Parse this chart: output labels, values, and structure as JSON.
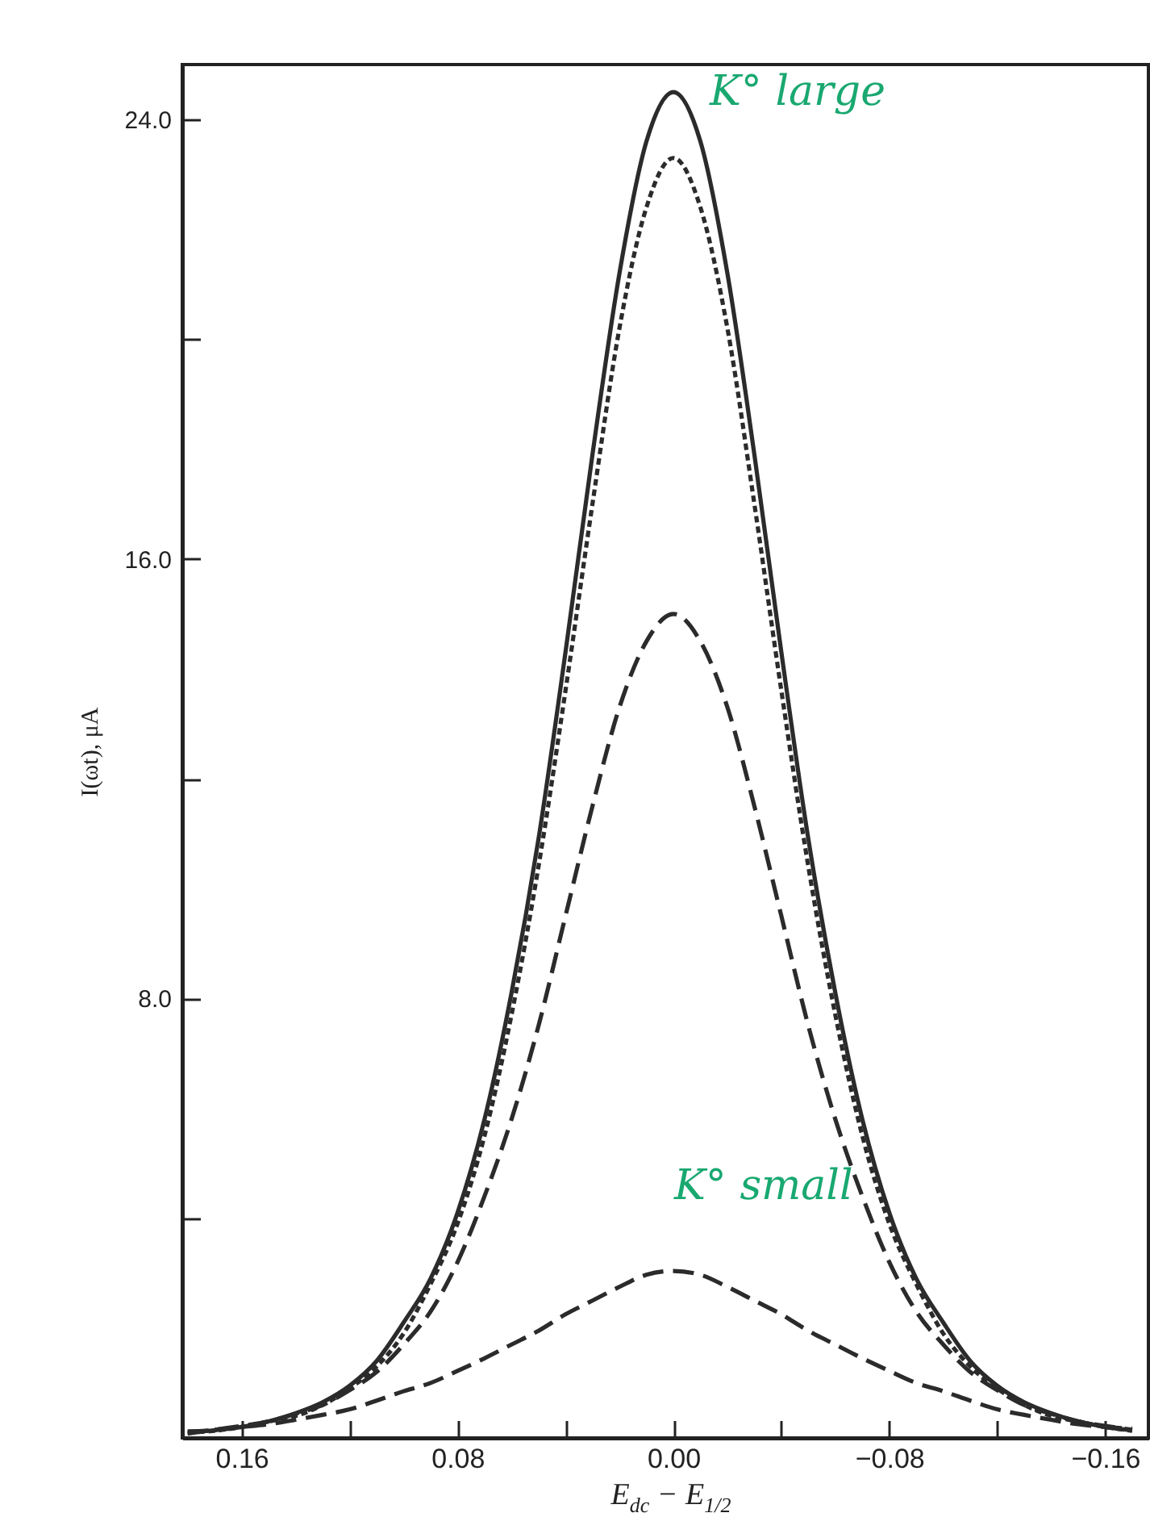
{
  "chart_data": {
    "type": "line",
    "xlabel": "E$_{dc}$ − E$_{1/2}$",
    "ylabel": "I(ωt), μA",
    "x": [
      0.18,
      0.17,
      0.16,
      0.15,
      0.14,
      0.13,
      0.12,
      0.11,
      0.1,
      0.09,
      0.08,
      0.07,
      0.06,
      0.05,
      0.04,
      0.03,
      0.02,
      0.01,
      0,
      -0.01,
      -0.02,
      -0.03,
      -0.04,
      -0.05,
      -0.06,
      -0.07,
      -0.08,
      -0.09,
      -0.1,
      -0.11,
      -0.12,
      -0.13,
      -0.14,
      -0.15,
      -0.16,
      -0.17
    ],
    "series": [
      {
        "color": "#2b2b2b",
        "line_style": "solid",
        "values": [
          0.12,
          0.14,
          0.2,
          0.3,
          0.45,
          0.65,
          0.95,
          1.4,
          2.1,
          2.9,
          4.1,
          5.8,
          8.1,
          10.9,
          14.3,
          17.9,
          21.2,
          23.6,
          24.5,
          23.6,
          21.2,
          17.9,
          14.3,
          10.9,
          8.1,
          5.8,
          4.1,
          2.9,
          2.1,
          1.4,
          0.95,
          0.65,
          0.45,
          0.3,
          0.2,
          0.14
        ]
      },
      {
        "color": "#2b2b2b",
        "line_style": "dotted",
        "values": [
          0.1,
          0.13,
          0.2,
          0.3,
          0.4,
          0.6,
          0.9,
          1.3,
          1.9,
          2.8,
          3.9,
          5.5,
          7.7,
          10.4,
          13.6,
          17.0,
          20.2,
          22.4,
          23.3,
          22.4,
          20.2,
          17.0,
          13.6,
          10.4,
          7.7,
          5.5,
          3.9,
          2.8,
          1.9,
          1.3,
          0.9,
          0.6,
          0.4,
          0.3,
          0.2,
          0.13
        ]
      },
      {
        "color": "#2b2b2b",
        "line_style": "dashed",
        "values": [
          0.08,
          0.15,
          0.22,
          0.3,
          0.44,
          0.6,
          0.87,
          1.2,
          1.7,
          2.3,
          3.2,
          4.4,
          5.8,
          7.5,
          9.5,
          11.5,
          13.3,
          14.5,
          15.0,
          14.5,
          13.3,
          11.5,
          9.5,
          7.5,
          5.8,
          4.4,
          3.2,
          2.3,
          1.7,
          1.2,
          0.87,
          0.6,
          0.44,
          0.3,
          0.22,
          0.15
        ]
      },
      {
        "color": "#2b2b2b",
        "line_style": "dashed",
        "x": [
          0.17,
          0.16,
          0.15,
          0.14,
          0.13,
          0.12,
          0.11,
          0.1,
          0.09,
          0.08,
          0.07,
          0.06,
          0.05,
          0.04,
          0.03,
          0.02,
          0.01,
          0,
          -0.01,
          -0.02,
          -0.03,
          -0.04,
          -0.05,
          -0.06,
          -0.07,
          -0.08,
          -0.09,
          -0.1,
          -0.11,
          -0.12,
          -0.13,
          -0.14,
          -0.15,
          -0.16,
          -0.17
        ],
        "values": [
          0.15,
          0.2,
          0.25,
          0.33,
          0.42,
          0.52,
          0.68,
          0.85,
          1.0,
          1.22,
          1.45,
          1.7,
          1.95,
          2.25,
          2.5,
          2.75,
          2.97,
          3.04,
          2.97,
          2.75,
          2.5,
          2.25,
          1.95,
          1.7,
          1.45,
          1.22,
          1.0,
          0.85,
          0.68,
          0.52,
          0.42,
          0.33,
          0.25,
          0.2,
          0.17
        ]
      }
    ],
    "xlim": [
      0.182,
      -0.176
    ],
    "ylim": [
      0,
      25
    ],
    "xticks": [
      0.16,
      {
        "value": 0.12,
        "label": null
      },
      {
        "value": 0.08,
        "label": "0.08"
      },
      {
        "value": 0.04,
        "label": null
      },
      {
        "value": 0,
        "label": "0.00"
      },
      {
        "value": -0.04,
        "label": null
      },
      {
        "value": -0.08,
        "label": "−0.08"
      },
      {
        "value": -0.12,
        "label": null
      },
      {
        "value": -0.16,
        "label": "−0.16"
      }
    ],
    "yticks": [
      {
        "value": 4,
        "label": null
      },
      {
        "value": 8,
        "label": "8.0"
      },
      {
        "value": 12,
        "label": null
      },
      {
        "value": 16,
        "label": "16.0"
      },
      {
        "value": 20,
        "label": null
      },
      {
        "value": 24,
        "label": "24.0"
      }
    ],
    "grid": false,
    "annotations": [
      "K° large",
      "K° small"
    ]
  }
}
